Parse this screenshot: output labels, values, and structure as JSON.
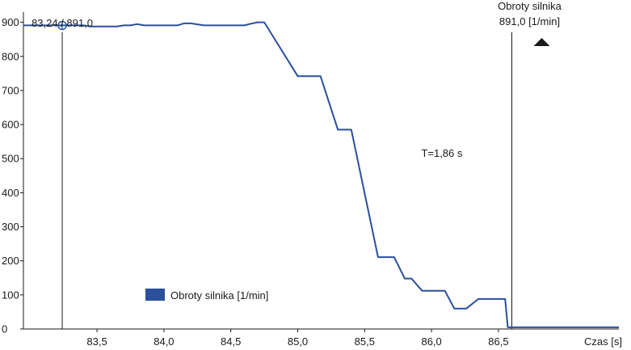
{
  "chart_data": {
    "type": "line",
    "title": "",
    "xlabel": "Czas [s]",
    "ylabel": "",
    "xlim": [
      82.95,
      87.4
    ],
    "ylim": [
      0,
      930
    ],
    "x_ticks": [
      83.5,
      84.0,
      84.5,
      85.0,
      85.5,
      86.0,
      86.5
    ],
    "x_tick_labels": [
      "83,5",
      "84,0",
      "84,5",
      "85,0",
      "85,5",
      "86,0",
      "86,5"
    ],
    "y_ticks": [
      0,
      100,
      200,
      300,
      400,
      500,
      600,
      700,
      800,
      900
    ],
    "y_tick_labels": [
      "0",
      "100",
      "200",
      "300",
      "400",
      "500",
      "600",
      "700",
      "800",
      "900"
    ],
    "grid": false,
    "legend_position": "bottom-left",
    "series": [
      {
        "name": "Obroty silnika [1/min]",
        "color": "#2a4f9c",
        "x": [
          82.95,
          83.24,
          83.4,
          83.45,
          83.65,
          83.7,
          83.75,
          83.8,
          83.85,
          84.1,
          84.15,
          84.2,
          84.3,
          84.35,
          84.6,
          84.65,
          84.7,
          84.75,
          85.0,
          85.05,
          85.1,
          85.17,
          85.3,
          85.3,
          85.4,
          85.6,
          85.68,
          85.72,
          85.8,
          85.83,
          85.85,
          85.93,
          86.02,
          86.1,
          86.17,
          86.26,
          86.35,
          86.43,
          86.55,
          86.57,
          87.4
        ],
        "y": [
          891,
          891,
          891,
          888,
          888,
          891,
          891,
          895,
          891,
          891,
          897,
          897,
          891,
          891,
          891,
          896,
          900,
          900,
          742,
          742,
          742,
          742,
          585,
          585,
          585,
          211,
          211,
          211,
          148,
          148,
          148,
          112,
          112,
          112,
          60,
          60,
          88,
          88,
          88,
          5,
          5
        ]
      }
    ],
    "cursor": {
      "x": 83.24,
      "y": 891.0,
      "label": "83,24 / 891,0"
    },
    "end_marker": {
      "x": 86.6,
      "label_line1": "Obroty silnika",
      "label_line2": "891,0 [1/min]"
    },
    "annotations": [
      {
        "text": "T=1,86 s",
        "x": 86.02,
        "y": 505
      }
    ]
  }
}
